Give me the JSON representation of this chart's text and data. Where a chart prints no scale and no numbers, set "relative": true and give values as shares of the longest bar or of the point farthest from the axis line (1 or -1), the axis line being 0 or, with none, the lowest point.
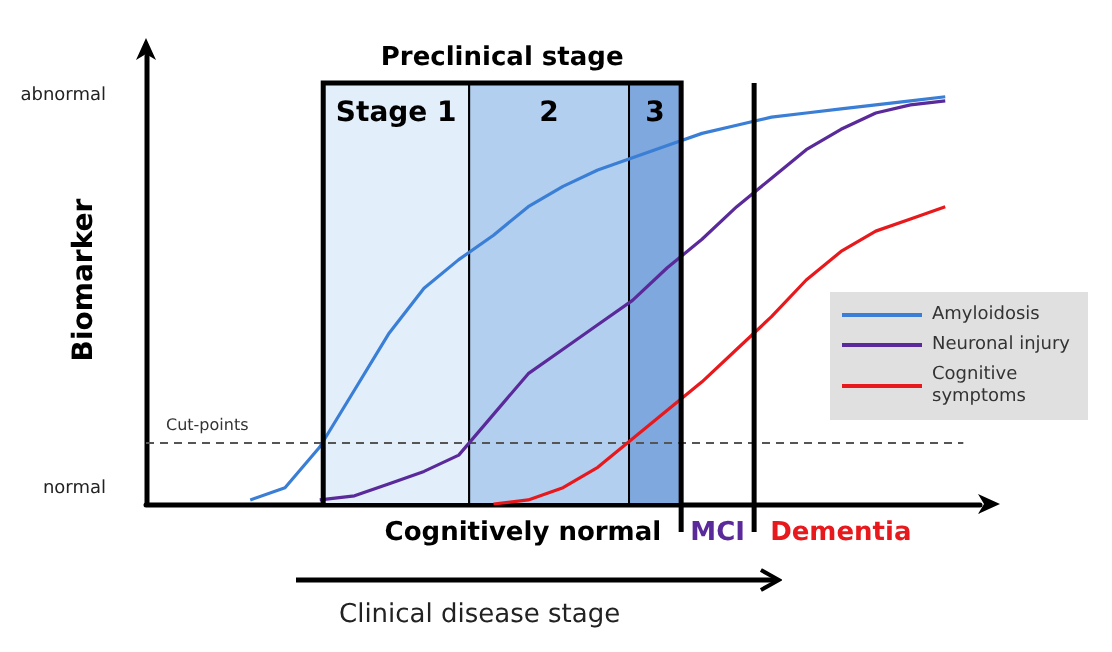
{
  "chart_data": {
    "type": "line",
    "ylabel": "Biomarker",
    "categories": [
      null,
      null,
      null,
      null,
      null,
      null,
      null,
      null,
      null,
      null,
      null,
      null,
      null,
      null,
      null,
      null,
      null,
      null,
      null,
      null,
      null,
      null,
      null,
      null,
      null
    ],
    "relative": true,
    "marker": "none",
    "legend": "right",
    "grid": false,
    "series": [
      {
        "name": "Amyloidosis",
        "color": "#3a7fd5",
        "values": [
          null,
          null,
          null,
          0.01,
          0.04,
          0.14,
          0.28,
          0.42,
          0.53,
          0.6,
          0.66,
          0.73,
          0.78,
          0.82,
          0.85,
          0.88,
          0.91,
          0.93,
          0.95,
          0.96,
          0.97,
          0.98,
          0.99,
          1,
          null
        ]
      },
      {
        "name": "Neuronal injury",
        "color": "#5a2a9a",
        "values": [
          null,
          null,
          null,
          null,
          null,
          0.01,
          0.02,
          0.05,
          0.08,
          0.12,
          0.22,
          0.32,
          0.38,
          0.44,
          0.5,
          0.58,
          0.65,
          0.73,
          0.8,
          0.87,
          0.92,
          0.96,
          0.98,
          0.99,
          null
        ]
      },
      {
        "name": "Cognitive symptoms",
        "color": "#e8191c",
        "values": [
          null,
          null,
          null,
          null,
          null,
          null,
          null,
          null,
          null,
          null,
          0,
          0.01,
          0.04,
          0.09,
          0.16,
          0.23,
          0.3,
          0.38,
          0.46,
          0.55,
          0.62,
          0.67,
          0.7,
          0.73,
          null
        ]
      }
    ],
    "ref_lines": [
      {
        "axis": "y",
        "value": 0.15,
        "label": "Cut-points",
        "line_style": "dashed",
        "color": "#555555"
      }
    ],
    "annotations": [
      "Preclinical stage",
      "Stage 1",
      "2",
      "3",
      "Cognitively normal",
      "MCI",
      "Dementia",
      "Clinical disease stage",
      "abnormal",
      "normal"
    ]
  }
}
